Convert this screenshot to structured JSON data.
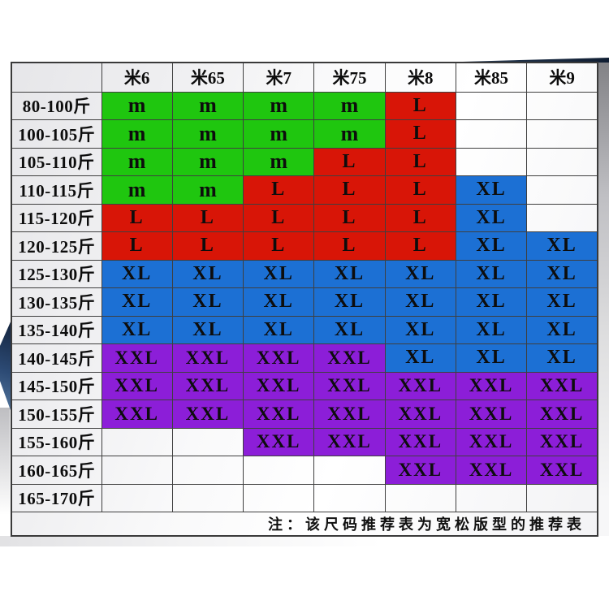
{
  "note": {
    "text": "注：该尺码推荐表为宽松版型的推荐表"
  },
  "colors": {
    "m": "#1FC60F",
    "L": "#D81507",
    "XL": "#1C70D4",
    "XXL": "#8C1ED8"
  },
  "table": {
    "corner_label": "",
    "columns": [
      "米6",
      "米65",
      "米7",
      "米75",
      "米8",
      "米85",
      "米9"
    ],
    "rows": [
      {
        "label": "80-100斤",
        "cells": [
          "m",
          "m",
          "m",
          "m",
          "L",
          "",
          ""
        ]
      },
      {
        "label": "100-105斤",
        "cells": [
          "m",
          "m",
          "m",
          "m",
          "L",
          "",
          ""
        ]
      },
      {
        "label": "105-110斤",
        "cells": [
          "m",
          "m",
          "m",
          "L",
          "L",
          "",
          ""
        ]
      },
      {
        "label": "110-115斤",
        "cells": [
          "m",
          "m",
          "L",
          "L",
          "L",
          "XL",
          ""
        ]
      },
      {
        "label": "115-120斤",
        "cells": [
          "L",
          "L",
          "L",
          "L",
          "L",
          "XL",
          ""
        ]
      },
      {
        "label": "120-125斤",
        "cells": [
          "L",
          "L",
          "L",
          "L",
          "L",
          "XL",
          "XL"
        ]
      },
      {
        "label": "125-130斤",
        "cells": [
          "XL",
          "XL",
          "XL",
          "XL",
          "XL",
          "XL",
          "XL"
        ]
      },
      {
        "label": "130-135斤",
        "cells": [
          "XL",
          "XL",
          "XL",
          "XL",
          "XL",
          "XL",
          "XL"
        ]
      },
      {
        "label": "135-140斤",
        "cells": [
          "XL",
          "XL",
          "XL",
          "XL",
          "XL",
          "XL",
          "XL"
        ]
      },
      {
        "label": "140-145斤",
        "cells": [
          "XXL",
          "XXL",
          "XXL",
          "XXL",
          "XL",
          "XL",
          "XL"
        ]
      },
      {
        "label": "145-150斤",
        "cells": [
          "XXL",
          "XXL",
          "XXL",
          "XXL",
          "XXL",
          "XXL",
          "XXL"
        ]
      },
      {
        "label": "150-155斤",
        "cells": [
          "XXL",
          "XXL",
          "XXL",
          "XXL",
          "XXL",
          "XXL",
          "XXL"
        ]
      },
      {
        "label": "155-160斤",
        "cells": [
          "",
          "",
          "XXL",
          "XXL",
          "XXL",
          "XXL",
          "XXL"
        ]
      },
      {
        "label": "160-165斤",
        "cells": [
          "",
          "",
          "",
          "",
          "XXL",
          "XXL",
          "XXL"
        ]
      },
      {
        "label": "165-170斤",
        "cells": [
          "",
          "",
          "",
          "",
          "",
          "",
          ""
        ]
      }
    ]
  },
  "chart_data": {
    "type": "table",
    "title": "",
    "columns": [
      "米6",
      "米65",
      "米7",
      "米75",
      "米8",
      "米85",
      "米9"
    ],
    "row_labels": [
      "80-100斤",
      "100-105斤",
      "105-110斤",
      "110-115斤",
      "115-120斤",
      "120-125斤",
      "125-130斤",
      "130-135斤",
      "135-140斤",
      "140-145斤",
      "145-150斤",
      "150-155斤",
      "155-160斤",
      "160-165斤",
      "165-170斤"
    ],
    "matrix": [
      [
        "m",
        "m",
        "m",
        "m",
        "L",
        "",
        ""
      ],
      [
        "m",
        "m",
        "m",
        "m",
        "L",
        "",
        ""
      ],
      [
        "m",
        "m",
        "m",
        "L",
        "L",
        "",
        ""
      ],
      [
        "m",
        "m",
        "L",
        "L",
        "L",
        "XL",
        ""
      ],
      [
        "L",
        "L",
        "L",
        "L",
        "L",
        "XL",
        ""
      ],
      [
        "L",
        "L",
        "L",
        "L",
        "L",
        "XL",
        "XL"
      ],
      [
        "XL",
        "XL",
        "XL",
        "XL",
        "XL",
        "XL",
        "XL"
      ],
      [
        "XL",
        "XL",
        "XL",
        "XL",
        "XL",
        "XL",
        "XL"
      ],
      [
        "XL",
        "XL",
        "XL",
        "XL",
        "XL",
        "XL",
        "XL"
      ],
      [
        "XXL",
        "XXL",
        "XXL",
        "XXL",
        "XL",
        "XL",
        "XL"
      ],
      [
        "XXL",
        "XXL",
        "XXL",
        "XXL",
        "XXL",
        "XXL",
        "XXL"
      ],
      [
        "XXL",
        "XXL",
        "XXL",
        "XXL",
        "XXL",
        "XXL",
        "XXL"
      ],
      [
        "",
        "",
        "XXL",
        "XXL",
        "XXL",
        "XXL",
        "XXL"
      ],
      [
        "",
        "",
        "",
        "",
        "XXL",
        "XXL",
        "XXL"
      ],
      [
        "",
        "",
        "",
        "",
        "",
        "",
        ""
      ]
    ],
    "cell_color_legend": {
      "m": "green #1FC60F",
      "L": "red #D81507",
      "XL": "blue #1C70D4",
      "XXL": "purple #8C1ED8",
      "": "empty/white"
    },
    "annotations": [
      "注：该尺码推荐表为宽松版型的推荐表"
    ]
  }
}
